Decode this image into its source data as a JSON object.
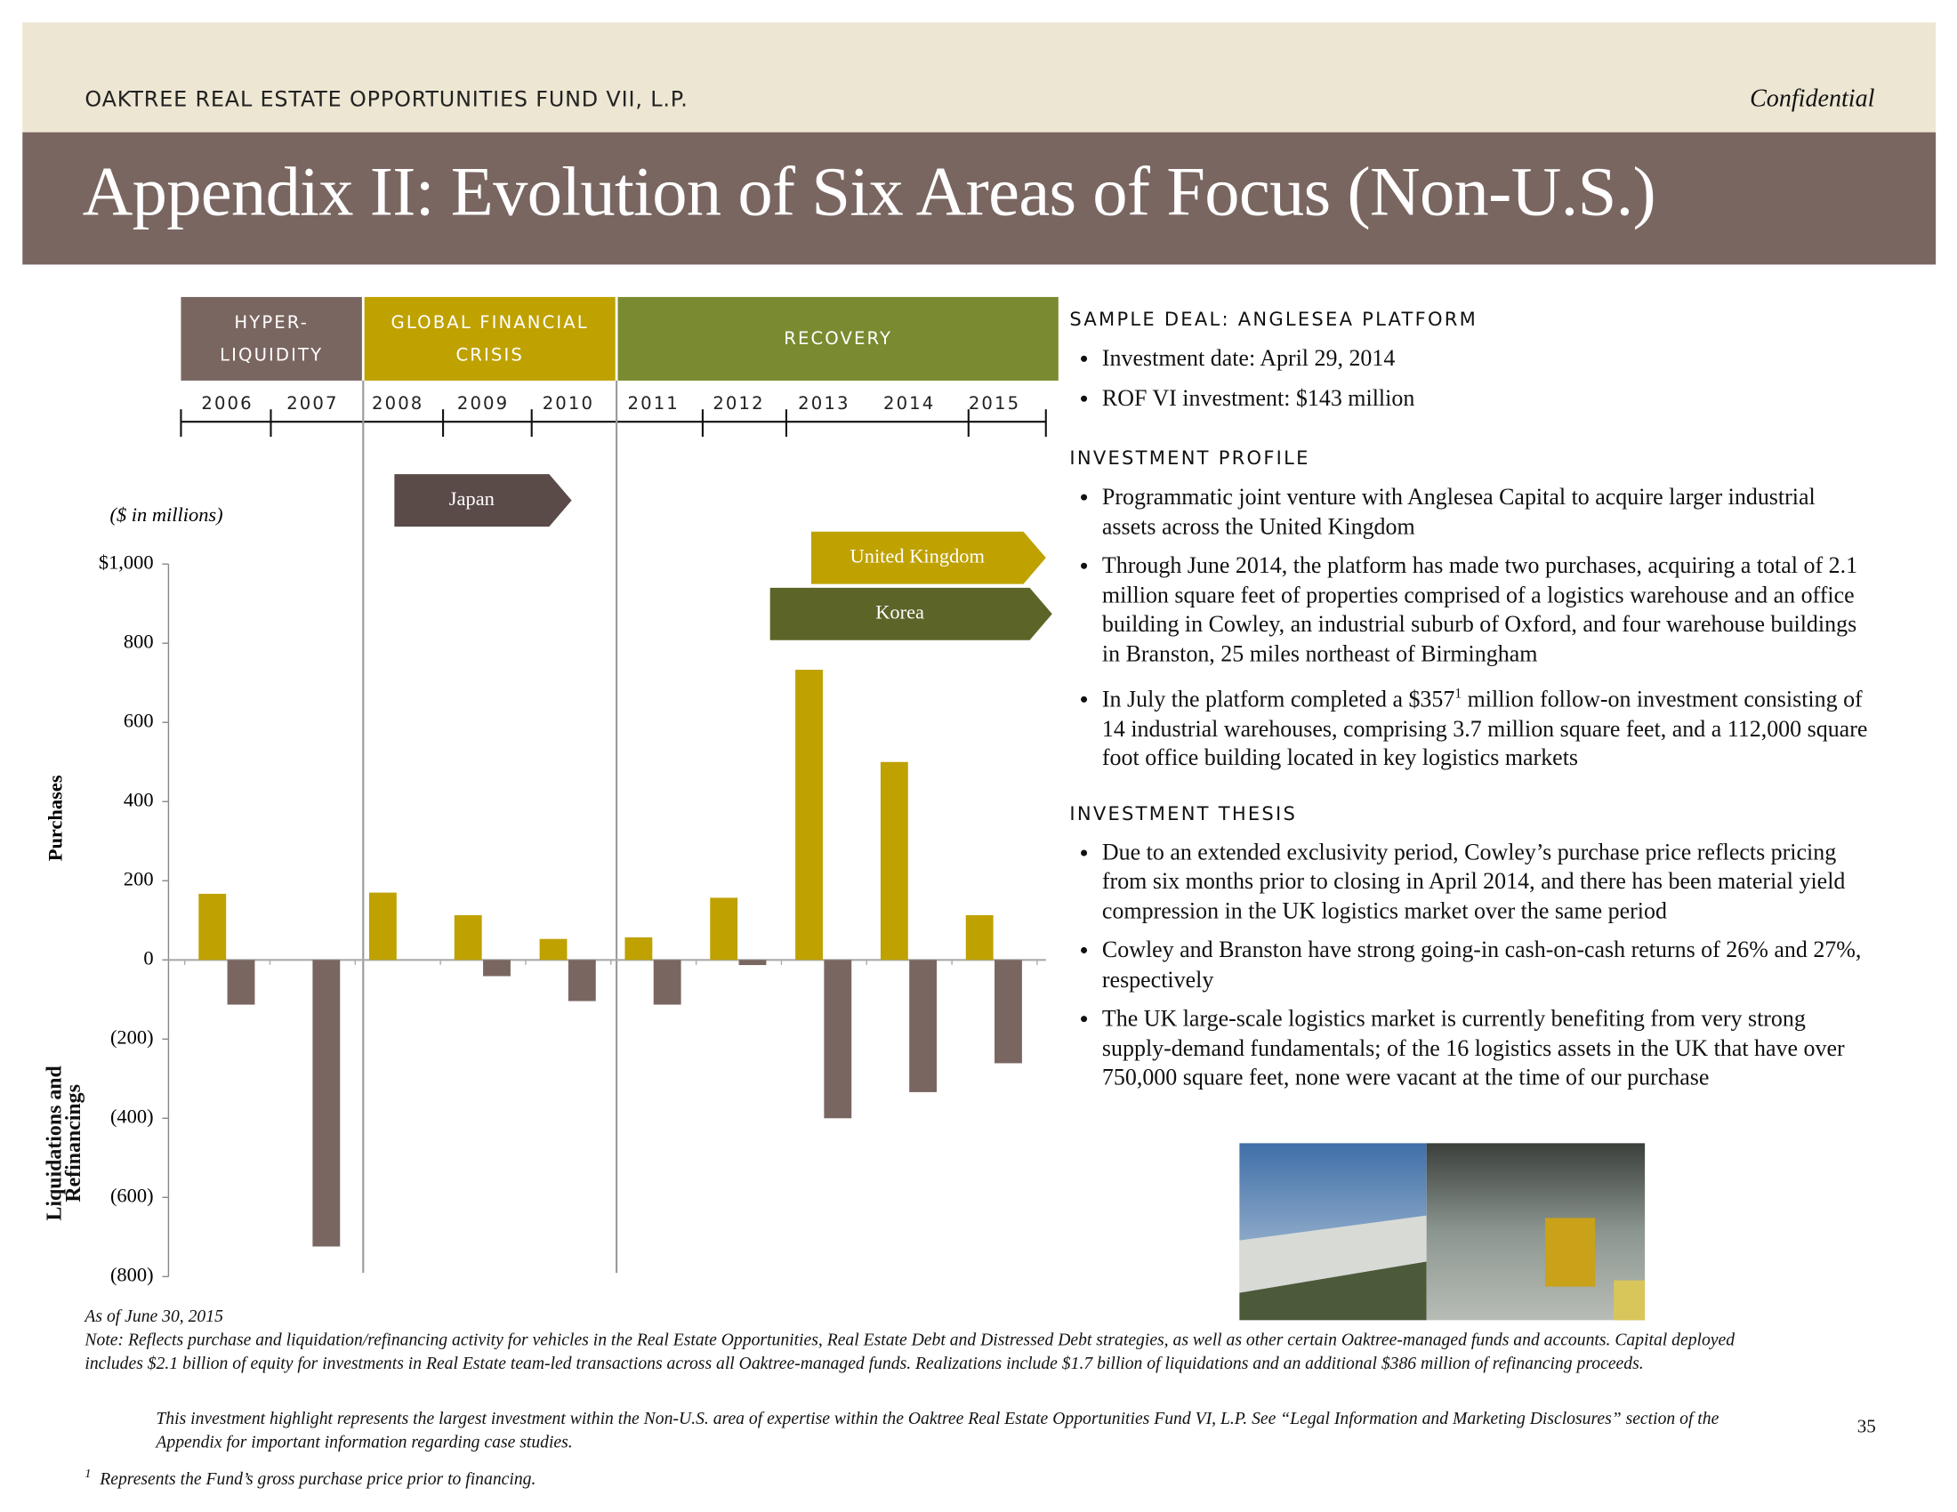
{
  "header": {
    "fund": "OAKTREE REAL ESTATE OPPORTUNITIES FUND VII, L.P.",
    "confidential": "Confidential",
    "title": "Appendix II: Evolution of Six Areas of Focus (Non-U.S.)"
  },
  "phases": [
    [
      "HYPER-",
      "LIQUIDITY"
    ],
    [
      "GLOBAL FINANCIAL",
      "CRISIS"
    ],
    [
      "RECOVERY"
    ]
  ],
  "chart_data": {
    "type": "bar",
    "unit_note": "($ in millions)",
    "categories": [
      "2006",
      "2007",
      "2008",
      "2009",
      "2010",
      "2011",
      "2012",
      "2013",
      "2014",
      "2015"
    ],
    "series": [
      {
        "name": "Purchases",
        "color": "#bfa100",
        "values": [
          167,
          0,
          170,
          113,
          53,
          57,
          157,
          733,
          500,
          113
        ]
      },
      {
        "name": "Liquidations and Refinancings",
        "color": "#7a6661",
        "values": [
          -113,
          -724,
          0,
          -41,
          -104,
          -113,
          -13,
          -400,
          -334,
          -261
        ]
      }
    ],
    "ylim": [
      -800,
      1000
    ],
    "yticks": [
      {
        "value": 1000,
        "label": "$1,000"
      },
      800,
      600,
      400,
      200,
      0,
      {
        "value": -200,
        "label": "(200)"
      },
      {
        "value": -400,
        "label": "(400)"
      },
      {
        "value": -600,
        "label": "(600)"
      },
      {
        "value": -800,
        "label": "(800)"
      }
    ],
    "annotations": [
      "Japan",
      "United Kingdom",
      "Korea"
    ]
  },
  "sample_deal": {
    "heading": "SAMPLE DEAL: ANGLESEA PLATFORM",
    "bullets": [
      "Investment date: April 29, 2014",
      "ROF VI investment: $143 million"
    ]
  },
  "investment_profile": {
    "heading": "INVESTMENT PROFILE",
    "bullets": [
      "Programmatic joint venture with Anglesea Capital to acquire larger industrial assets across the United Kingdom",
      "Through June 2014, the platform has made two purchases,  acquiring a total of 2.1 million square feet of properties comprised of a logistics warehouse and an office building in Cowley, an industrial suburb of Oxford, and four warehouse buildings in Branston, 25 miles northeast of Birmingham"
    ],
    "bullet_with_note": {
      "before": "In July the platform completed a $357",
      "sup": "1",
      "after": " million follow-on investment consisting of 14 industrial warehouses, comprising 3.7 million square feet, and a 112,000 square foot office building located in key logistics markets"
    }
  },
  "investment_thesis": {
    "heading": "INVESTMENT THESIS",
    "bullets": [
      "Due to an extended exclusivity period, Cowley’s purchase price reflects pricing from six months prior to closing in April 2014, and there has been material yield compression in the UK logistics market over the same period",
      "Cowley and Branston have strong going-in cash-on-cash returns of 26% and 27%, respectively",
      "The UK large-scale logistics market is currently benefiting from very strong supply-demand fundamentals; of the 16 logistics assets in the UK that have over 750,000 square feet, none were vacant at the time of our purchase"
    ]
  },
  "footer": {
    "as_of": "As of June 30, 2015",
    "note": "Note: Reflects purchase and liquidation/refinancing activity for vehicles in the Real Estate Opportunities, Real Estate Debt and Distressed Debt strategies, as well as other certain Oaktree-managed funds and accounts.  Capital deployed includes $2.1 billion of equity for investments in Real Estate team-led transactions across all Oaktree-managed funds.  Realizations include $1.7 billion of liquidations and an additional $386 million of refinancing proceeds.",
    "highlight": "This investment highlight represents the largest investment within the Non-U.S. area of expertise within the Oaktree Real Estate Opportunities Fund VI, L.P. See “Legal Information and Marketing Disclosures” section of the Appendix for important information regarding case studies.",
    "footnote_mark": "1",
    "footnote": "Represents the Fund’s gross purchase price prior to financing.",
    "page": "35"
  }
}
